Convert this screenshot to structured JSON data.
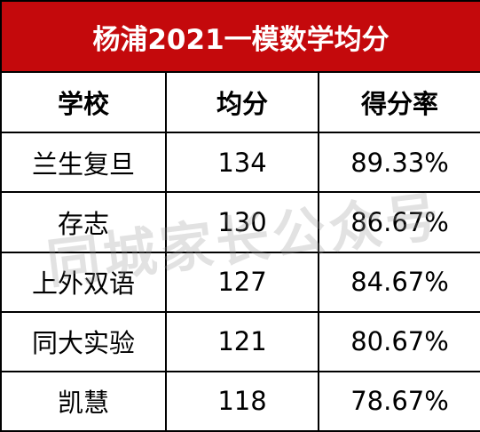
{
  "table": {
    "title": "杨浦2021一模数学均分",
    "headers": [
      "学校",
      "均分",
      "得分率"
    ],
    "rows": [
      {
        "school": "兰生复旦",
        "average": "134",
        "rate": "89.33%"
      },
      {
        "school": "存志",
        "average": "130",
        "rate": "86.67%"
      },
      {
        "school": "上外双语",
        "average": "127",
        "rate": "84.67%"
      },
      {
        "school": "同大实验",
        "average": "121",
        "rate": "80.67%"
      },
      {
        "school": "凯慧",
        "average": "118",
        "rate": "78.67%"
      }
    ],
    "colors": {
      "title_bg": "#c4090c",
      "title_text": "#ffffff",
      "border": "#000000"
    }
  },
  "watermark": "同城家长公众号"
}
